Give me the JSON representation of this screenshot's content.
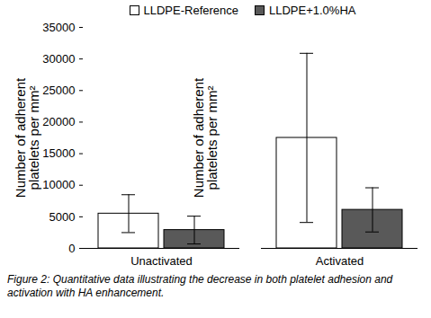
{
  "chart_data": {
    "type": "bar",
    "y_label": "Number of adherent platelets per mm²",
    "caption": "Figure 2: Quantitative data illustrating the decrease in both platelet adhesion and activation with HA enhancement.",
    "categories": [
      "Unactivated",
      "Activated"
    ],
    "series": [
      {
        "name": "LLDPE-Reference",
        "color": "#ffffff",
        "values": [
          5500,
          17500
        ],
        "errors": [
          3000,
          13400
        ]
      },
      {
        "name": "LLDPE+1.0%HA",
        "color": "#595959",
        "values": [
          2900,
          6100
        ],
        "errors": [
          2200,
          3500
        ]
      }
    ],
    "ylim": [
      0,
      35000
    ],
    "yticks": [
      0,
      5000,
      10000,
      15000,
      20000,
      25000,
      30000,
      35000
    ],
    "legend": "top",
    "grid": false
  }
}
